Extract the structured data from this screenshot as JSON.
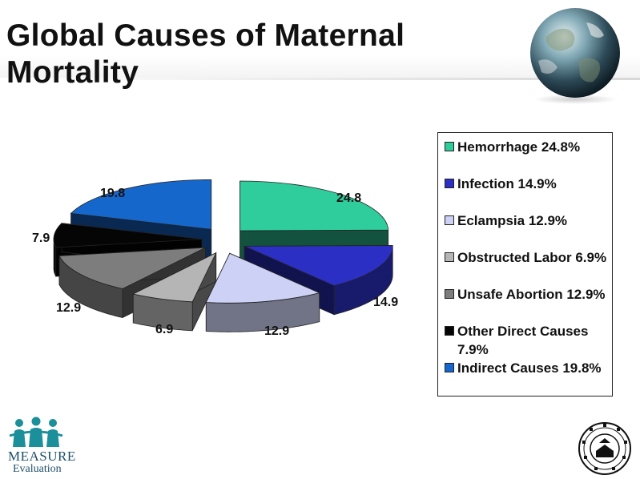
{
  "title_lines": [
    "Global Causes of Maternal",
    "Mortality"
  ],
  "chart_data": {
    "type": "pie",
    "style": "3d-exploded",
    "title": "Global Causes of Maternal Mortality",
    "unit": "%",
    "slices": [
      {
        "name": "Hemorrhage",
        "value": 24.8,
        "color": "#2fcc9c",
        "legend": "Hemorrhage 24.8%"
      },
      {
        "name": "Infection",
        "value": 14.9,
        "color": "#2b2fc4",
        "legend": "Infection 14.9%"
      },
      {
        "name": "Eclampsia",
        "value": 12.9,
        "color": "#cdd1f5",
        "legend": "Eclampsia 12.9%"
      },
      {
        "name": "Obstructed Labor",
        "value": 6.9,
        "color": "#b5b5b5",
        "legend": "Obstructed Labor 6.9%"
      },
      {
        "name": "Unsafe Abortion",
        "value": 12.9,
        "color": "#7d7d7d",
        "legend": "Unsafe Abortion 12.9%"
      },
      {
        "name": "Other Direct Causes",
        "value": 7.9,
        "color": "#050505",
        "legend": "Other Direct Causes 7.9%"
      },
      {
        "name": "Indirect Causes",
        "value": 19.8,
        "color": "#1667cc",
        "legend": "Indirect Causes 19.8%"
      }
    ],
    "data_labels": [
      "24.8",
      "14.9",
      "12.9",
      "6.9",
      "12.9",
      "7.9",
      "19.8"
    ],
    "legend_position": "right"
  },
  "logos": {
    "measure": {
      "word": "MEASURE",
      "sub": "Evaluation"
    }
  }
}
